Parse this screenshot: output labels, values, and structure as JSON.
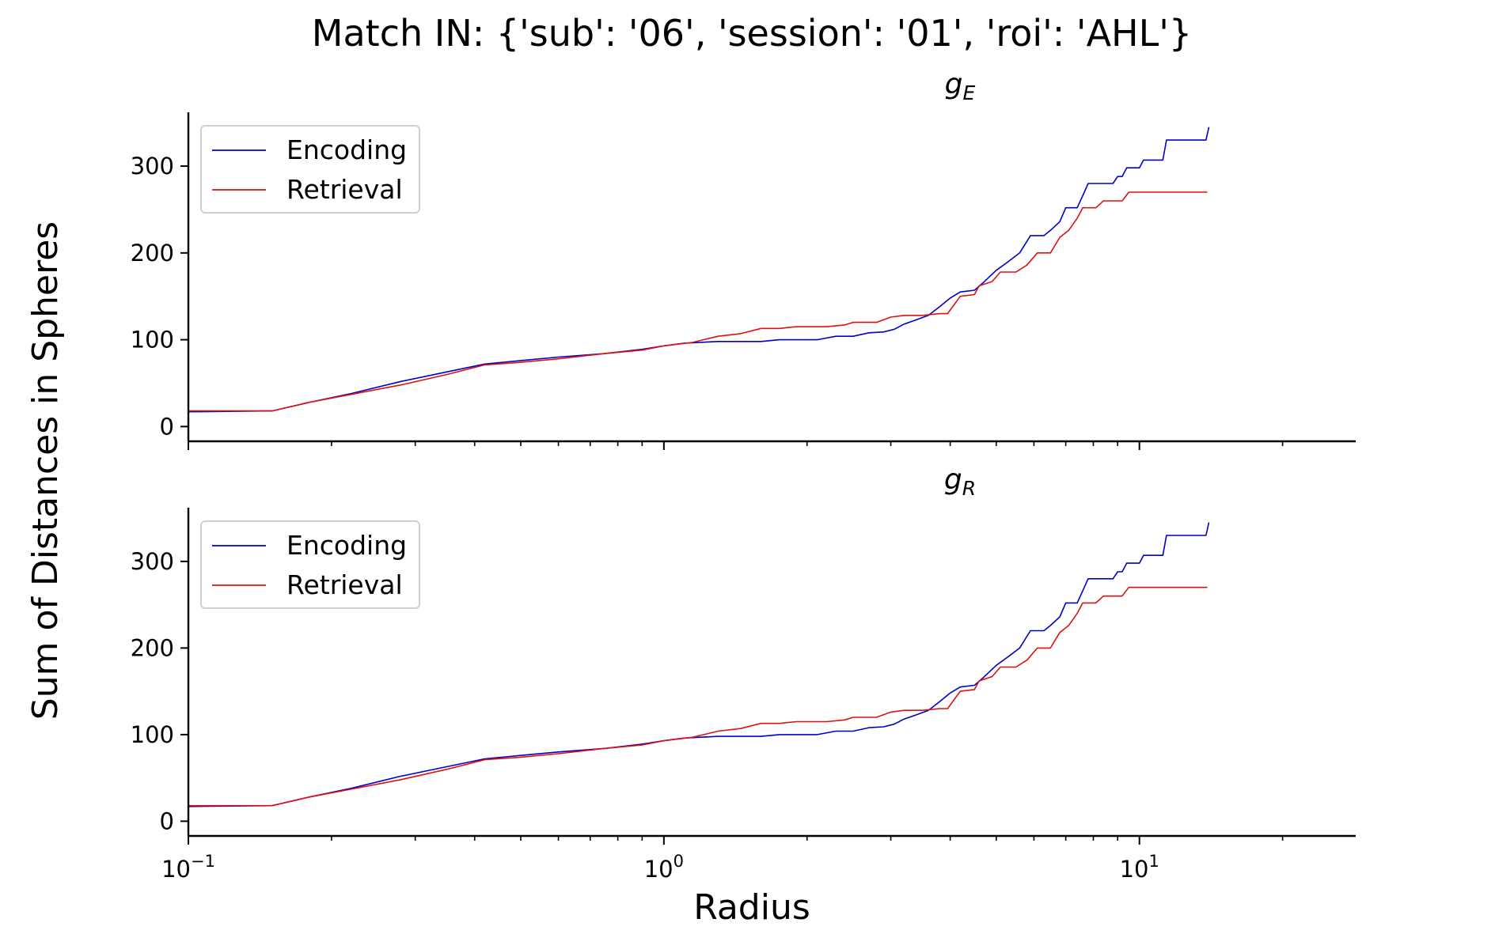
{
  "figure": {
    "suptitle": "Match IN: {'sub': '06', 'session': '01', 'roi': 'AHL'}",
    "ylabel": "Sum of Distances in Spheres",
    "xlabel": "Radius"
  },
  "colors": {
    "encoding": "#0000cc",
    "retrieval": "#dd1111"
  },
  "chart_data": [
    {
      "type": "line",
      "title_base": "g",
      "title_sub": "E",
      "xscale": "log",
      "xlim": [
        0.1,
        28.5
      ],
      "ylim": [
        -17,
        362
      ],
      "yticks": [
        0,
        100,
        200,
        300
      ],
      "xticks": [
        0.1,
        1,
        10
      ],
      "xtick_labels": [
        {
          "base": "10",
          "exp": "−1"
        },
        {
          "base": "10",
          "exp": "0"
        },
        {
          "base": "10",
          "exp": "1"
        }
      ],
      "show_xticklabels": false,
      "legend": "upper-left",
      "series": [
        {
          "name": "Encoding",
          "points": [
            [
              0.1,
              17
            ],
            [
              0.15,
              18
            ],
            [
              0.18,
              28
            ],
            [
              0.22,
              38
            ],
            [
              0.28,
              52
            ],
            [
              0.35,
              63
            ],
            [
              0.42,
              72
            ],
            [
              0.5,
              76
            ],
            [
              0.6,
              80
            ],
            [
              0.75,
              84
            ],
            [
              0.9,
              89
            ],
            [
              1.0,
              93
            ],
            [
              1.1,
              96
            ],
            [
              1.3,
              98
            ],
            [
              1.6,
              98
            ],
            [
              1.75,
              100
            ],
            [
              2.1,
              100
            ],
            [
              2.3,
              104
            ],
            [
              2.5,
              104
            ],
            [
              2.7,
              108
            ],
            [
              2.9,
              109
            ],
            [
              3.05,
              112
            ],
            [
              3.2,
              118
            ],
            [
              3.4,
              123
            ],
            [
              3.6,
              128
            ],
            [
              3.8,
              138
            ],
            [
              4.0,
              148
            ],
            [
              4.2,
              155
            ],
            [
              4.5,
              157
            ],
            [
              4.7,
              166
            ],
            [
              5.0,
              180
            ],
            [
              5.3,
              190
            ],
            [
              5.6,
              200
            ],
            [
              5.9,
              220
            ],
            [
              6.3,
              220
            ],
            [
              6.5,
              226
            ],
            [
              6.8,
              236
            ],
            [
              7.0,
              252
            ],
            [
              7.4,
              252
            ],
            [
              7.6,
              266
            ],
            [
              7.8,
              280
            ],
            [
              8.4,
              280
            ],
            [
              8.8,
              280
            ],
            [
              9.0,
              288
            ],
            [
              9.2,
              288
            ],
            [
              9.4,
              298
            ],
            [
              10.0,
              298
            ],
            [
              10.2,
              307
            ],
            [
              11.2,
              307
            ],
            [
              11.4,
              330
            ],
            [
              13.8,
              330
            ],
            [
              14.0,
              345
            ]
          ]
        },
        {
          "name": "Retrieval",
          "points": [
            [
              0.1,
              18
            ],
            [
              0.15,
              18
            ],
            [
              0.18,
              28
            ],
            [
              0.22,
              37
            ],
            [
              0.28,
              48
            ],
            [
              0.35,
              60
            ],
            [
              0.42,
              71
            ],
            [
              0.5,
              74
            ],
            [
              0.6,
              78
            ],
            [
              0.75,
              84
            ],
            [
              0.9,
              88
            ],
            [
              1.0,
              93
            ],
            [
              1.15,
              97
            ],
            [
              1.3,
              104
            ],
            [
              1.45,
              107
            ],
            [
              1.6,
              113
            ],
            [
              1.75,
              113
            ],
            [
              1.9,
              115
            ],
            [
              2.2,
              115
            ],
            [
              2.4,
              117
            ],
            [
              2.5,
              120
            ],
            [
              2.8,
              120
            ],
            [
              3.0,
              126
            ],
            [
              3.2,
              128
            ],
            [
              3.5,
              128
            ],
            [
              3.8,
              130
            ],
            [
              3.95,
              130
            ],
            [
              4.2,
              150
            ],
            [
              4.5,
              152
            ],
            [
              4.6,
              162
            ],
            [
              4.9,
              167
            ],
            [
              5.1,
              178
            ],
            [
              5.5,
              178
            ],
            [
              5.8,
              186
            ],
            [
              6.1,
              200
            ],
            [
              6.5,
              200
            ],
            [
              6.8,
              218
            ],
            [
              7.1,
              226
            ],
            [
              7.4,
              240
            ],
            [
              7.6,
              252
            ],
            [
              8.1,
              252
            ],
            [
              8.4,
              260
            ],
            [
              9.2,
              260
            ],
            [
              9.5,
              270
            ],
            [
              13.9,
              270
            ]
          ]
        }
      ]
    },
    {
      "type": "line",
      "title_base": "g",
      "title_sub": "R",
      "xscale": "log",
      "xlim": [
        0.1,
        28.5
      ],
      "ylim": [
        -17,
        362
      ],
      "yticks": [
        0,
        100,
        200,
        300
      ],
      "xticks": [
        0.1,
        1,
        10
      ],
      "xtick_labels": [
        {
          "base": "10",
          "exp": "−1"
        },
        {
          "base": "10",
          "exp": "0"
        },
        {
          "base": "10",
          "exp": "1"
        }
      ],
      "show_xticklabels": true,
      "legend": "upper-left",
      "series": [
        {
          "name": "Encoding",
          "points": [
            [
              0.1,
              17
            ],
            [
              0.15,
              18
            ],
            [
              0.18,
              28
            ],
            [
              0.22,
              38
            ],
            [
              0.28,
              52
            ],
            [
              0.35,
              63
            ],
            [
              0.42,
              72
            ],
            [
              0.5,
              76
            ],
            [
              0.6,
              80
            ],
            [
              0.75,
              84
            ],
            [
              0.9,
              89
            ],
            [
              1.0,
              93
            ],
            [
              1.1,
              96
            ],
            [
              1.3,
              98
            ],
            [
              1.6,
              98
            ],
            [
              1.75,
              100
            ],
            [
              2.1,
              100
            ],
            [
              2.3,
              104
            ],
            [
              2.5,
              104
            ],
            [
              2.7,
              108
            ],
            [
              2.9,
              109
            ],
            [
              3.05,
              112
            ],
            [
              3.2,
              118
            ],
            [
              3.4,
              123
            ],
            [
              3.6,
              128
            ],
            [
              3.8,
              138
            ],
            [
              4.0,
              148
            ],
            [
              4.2,
              155
            ],
            [
              4.5,
              157
            ],
            [
              4.7,
              166
            ],
            [
              5.0,
              180
            ],
            [
              5.3,
              190
            ],
            [
              5.6,
              200
            ],
            [
              5.9,
              220
            ],
            [
              6.3,
              220
            ],
            [
              6.5,
              226
            ],
            [
              6.8,
              236
            ],
            [
              7.0,
              252
            ],
            [
              7.4,
              252
            ],
            [
              7.6,
              266
            ],
            [
              7.8,
              280
            ],
            [
              8.4,
              280
            ],
            [
              8.8,
              280
            ],
            [
              9.0,
              288
            ],
            [
              9.2,
              288
            ],
            [
              9.4,
              298
            ],
            [
              10.0,
              298
            ],
            [
              10.2,
              307
            ],
            [
              11.2,
              307
            ],
            [
              11.4,
              330
            ],
            [
              13.8,
              330
            ],
            [
              14.0,
              345
            ]
          ]
        },
        {
          "name": "Retrieval",
          "points": [
            [
              0.1,
              18
            ],
            [
              0.15,
              18
            ],
            [
              0.18,
              28
            ],
            [
              0.22,
              37
            ],
            [
              0.28,
              48
            ],
            [
              0.35,
              60
            ],
            [
              0.42,
              71
            ],
            [
              0.5,
              74
            ],
            [
              0.6,
              78
            ],
            [
              0.75,
              84
            ],
            [
              0.9,
              88
            ],
            [
              1.0,
              93
            ],
            [
              1.15,
              97
            ],
            [
              1.3,
              104
            ],
            [
              1.45,
              107
            ],
            [
              1.6,
              113
            ],
            [
              1.75,
              113
            ],
            [
              1.9,
              115
            ],
            [
              2.2,
              115
            ],
            [
              2.4,
              117
            ],
            [
              2.5,
              120
            ],
            [
              2.8,
              120
            ],
            [
              3.0,
              126
            ],
            [
              3.2,
              128
            ],
            [
              3.5,
              128
            ],
            [
              3.8,
              130
            ],
            [
              3.95,
              130
            ],
            [
              4.2,
              150
            ],
            [
              4.5,
              152
            ],
            [
              4.6,
              162
            ],
            [
              4.9,
              167
            ],
            [
              5.1,
              178
            ],
            [
              5.5,
              178
            ],
            [
              5.8,
              186
            ],
            [
              6.1,
              200
            ],
            [
              6.5,
              200
            ],
            [
              6.8,
              218
            ],
            [
              7.1,
              226
            ],
            [
              7.4,
              240
            ],
            [
              7.6,
              252
            ],
            [
              8.1,
              252
            ],
            [
              8.4,
              260
            ],
            [
              9.2,
              260
            ],
            [
              9.5,
              270
            ],
            [
              13.9,
              270
            ]
          ]
        }
      ]
    }
  ]
}
